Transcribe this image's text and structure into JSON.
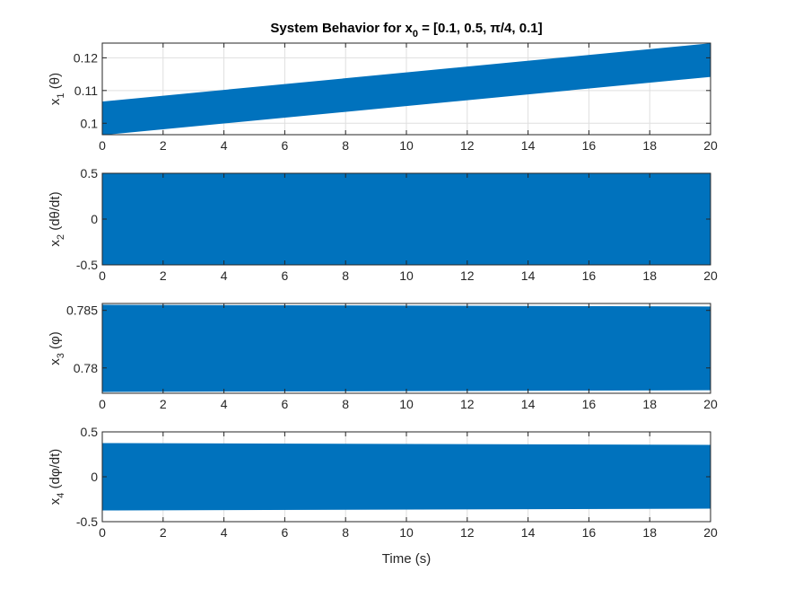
{
  "chart_data": {
    "type": "line",
    "title": "System Behavior for x0 = [0.1, 0.5, π/4, 0.1]",
    "title_parts": {
      "prefix": "System Behavior for x",
      "subscript": "0",
      "suffix": " = [0.1, 0.5, π/4, 0.1]"
    },
    "xlabel": "Time (s)",
    "grid": true,
    "line_color": "#0072BD",
    "subplots": [
      {
        "ylabel_var": "x",
        "ylabel_sub": "1",
        "ylabel_rest": " (θ)",
        "xlim": [
          0,
          20
        ],
        "ylim": [
          0.0965,
          0.1245
        ],
        "xticks": [
          "0",
          "2",
          "4",
          "6",
          "8",
          "10",
          "12",
          "14",
          "16",
          "18",
          "20"
        ],
        "yticks": [
          0.1,
          0.11,
          0.12
        ],
        "ytick_labels": [
          "0.1",
          "0.11",
          "0.12"
        ],
        "series": [
          {
            "x": [
              0,
              20
            ],
            "y_upper": [
              0.1065,
              0.1243
            ],
            "y_lower": [
              0.0965,
              0.1143
            ]
          }
        ]
      },
      {
        "ylabel_var": "x",
        "ylabel_sub": "2",
        "ylabel_rest": " (dθ/dt)",
        "xlim": [
          0,
          20
        ],
        "ylim": [
          -0.5,
          0.5
        ],
        "xticks": [
          "0",
          "2",
          "4",
          "6",
          "8",
          "10",
          "12",
          "14",
          "16",
          "18",
          "20"
        ],
        "yticks": [
          -0.5,
          0,
          0.5
        ],
        "ytick_labels": [
          "-0.5",
          "0",
          "0.5"
        ],
        "series": [
          {
            "x": [
              0,
              20
            ],
            "y_upper": [
              0.5,
              0.49
            ],
            "y_lower": [
              -0.5,
              -0.49
            ]
          }
        ]
      },
      {
        "ylabel_var": "x",
        "ylabel_sub": "3",
        "ylabel_rest": " (φ)",
        "xlim": [
          0,
          20
        ],
        "ylim": [
          0.7778,
          0.7856
        ],
        "xticks": [
          "0",
          "2",
          "4",
          "6",
          "8",
          "10",
          "12",
          "14",
          "16",
          "18",
          "20"
        ],
        "yticks": [
          0.78,
          0.785
        ],
        "ytick_labels": [
          "0.78",
          "0.785"
        ],
        "series": [
          {
            "x": [
              0,
              20
            ],
            "y_upper": [
              0.78545,
              0.7853
            ],
            "y_lower": [
              0.77795,
              0.7781
            ]
          }
        ]
      },
      {
        "ylabel_var": "x",
        "ylabel_sub": "4",
        "ylabel_rest": " (dφ/dt)",
        "xlim": [
          0,
          20
        ],
        "ylim": [
          -0.5,
          0.5
        ],
        "xticks": [
          "0",
          "2",
          "4",
          "6",
          "8",
          "10",
          "12",
          "14",
          "16",
          "18",
          "20"
        ],
        "yticks": [
          -0.5,
          0,
          0.5
        ],
        "ytick_labels": [
          "-0.5",
          "0",
          "0.5"
        ],
        "series": [
          {
            "x": [
              0,
              20
            ],
            "y_upper": [
              0.37,
              0.35
            ],
            "y_lower": [
              -0.37,
              -0.35
            ]
          }
        ]
      }
    ]
  }
}
